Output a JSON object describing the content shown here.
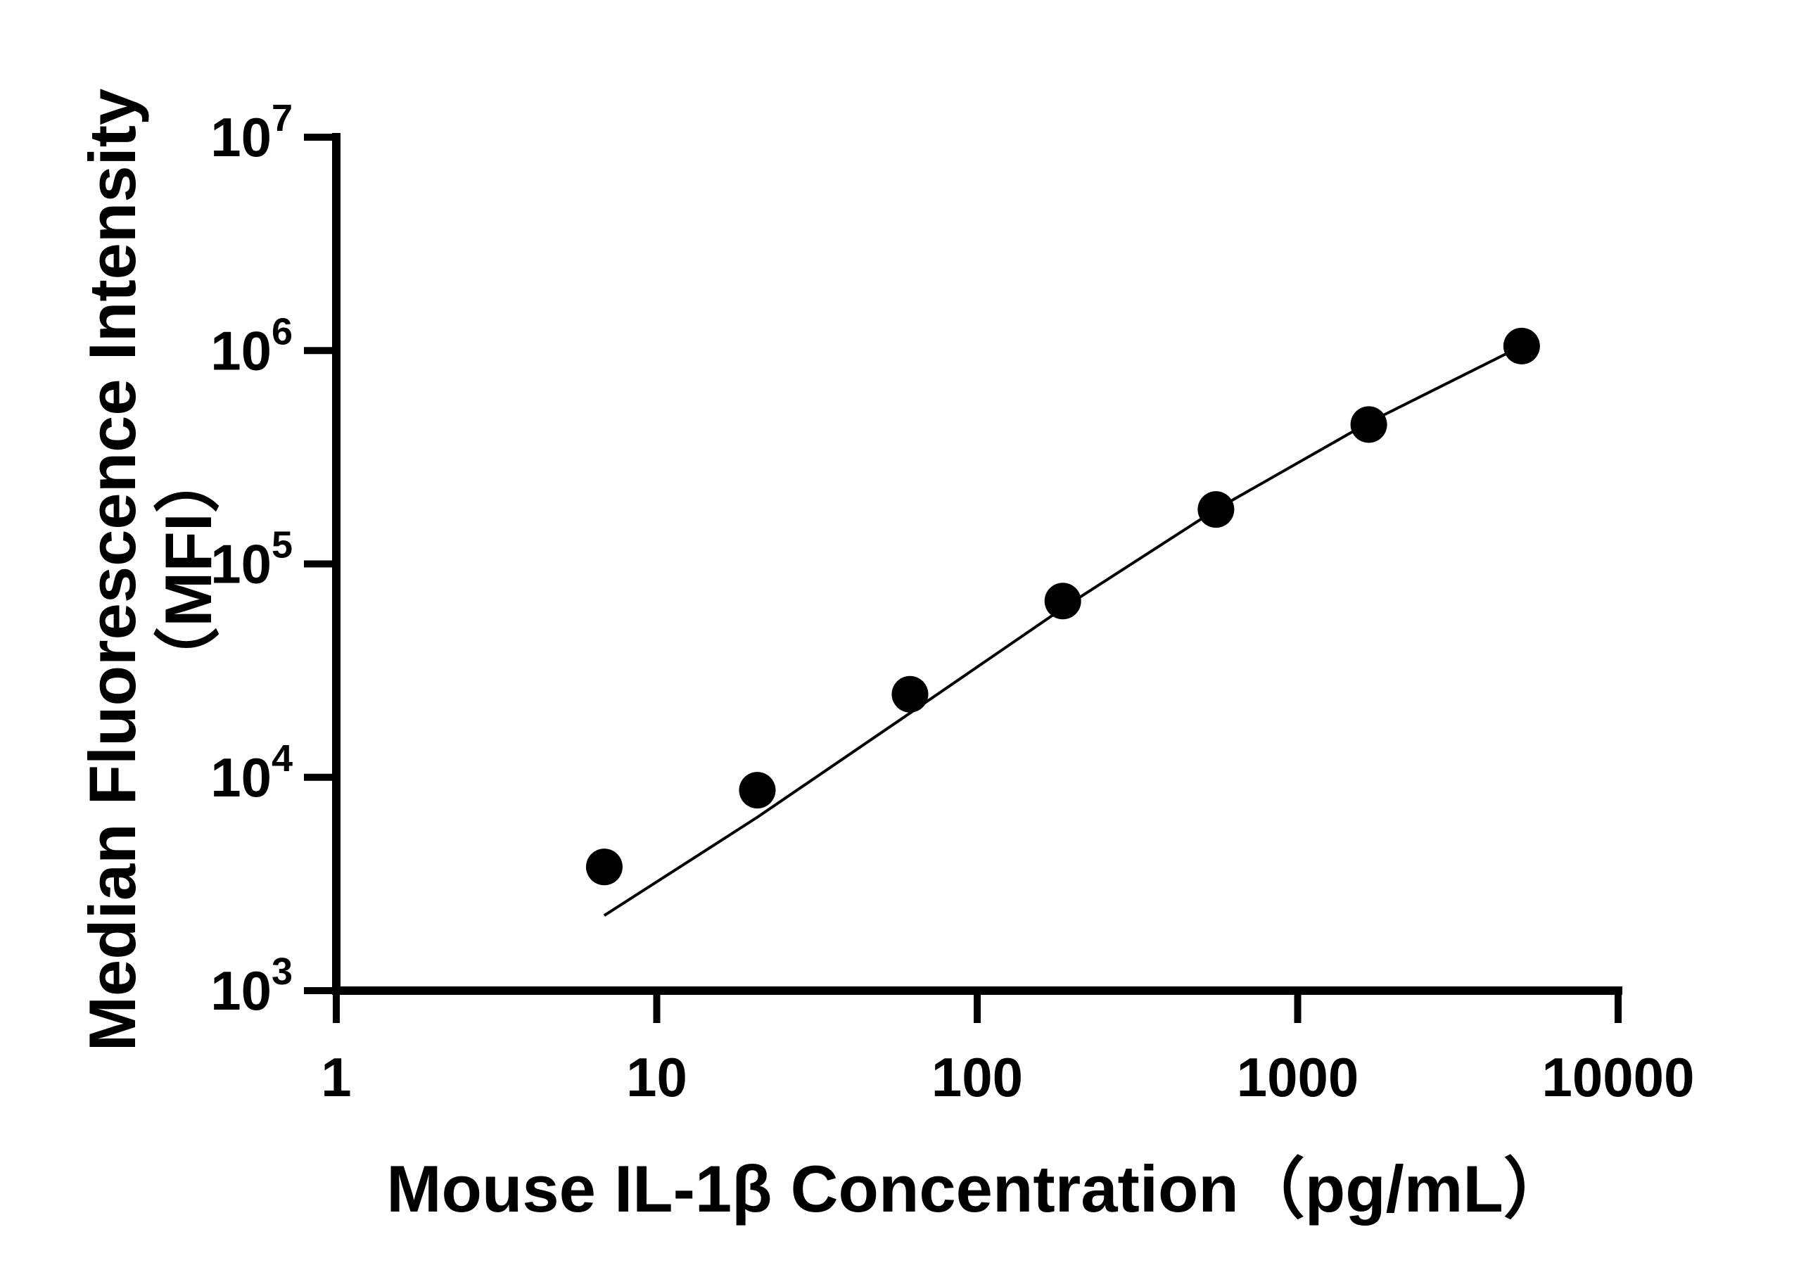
{
  "chart_data": {
    "type": "scatter",
    "title": "",
    "xlabel": "Mouse IL-1β Concentration（pg/mL）",
    "ylabel_line1": "Median Fluorescence Intensity",
    "ylabel_line2": "（MFI）",
    "x_scale": "log",
    "y_scale": "log",
    "xlim": [
      1,
      10000
    ],
    "ylim": [
      1000,
      10000000
    ],
    "x_ticks": [
      {
        "value": 1,
        "label": "1"
      },
      {
        "value": 10,
        "label": "10"
      },
      {
        "value": 100,
        "label": "100"
      },
      {
        "value": 1000,
        "label": "1000"
      },
      {
        "value": 10000,
        "label": "10000"
      }
    ],
    "y_ticks": [
      {
        "value": 1000,
        "base": "10",
        "exp": "3"
      },
      {
        "value": 10000,
        "base": "10",
        "exp": "4"
      },
      {
        "value": 100000,
        "base": "10",
        "exp": "5"
      },
      {
        "value": 1000000,
        "base": "10",
        "exp": "6"
      },
      {
        "value": 10000000,
        "base": "10",
        "exp": "7"
      }
    ],
    "series": [
      {
        "points": [
          {
            "x": 6.86,
            "y": 3800
          },
          {
            "x": 20.6,
            "y": 8700
          },
          {
            "x": 61.7,
            "y": 24500
          },
          {
            "x": 185,
            "y": 67000
          },
          {
            "x": 556,
            "y": 180000
          },
          {
            "x": 1667,
            "y": 450000
          },
          {
            "x": 5000,
            "y": 1050000
          }
        ],
        "fit_curve": [
          {
            "x": 6.86,
            "y": 2250
          },
          {
            "x": 20.6,
            "y": 6500
          },
          {
            "x": 61.7,
            "y": 20000
          },
          {
            "x": 185,
            "y": 62000
          },
          {
            "x": 556,
            "y": 180000
          },
          {
            "x": 1667,
            "y": 460000
          },
          {
            "x": 5000,
            "y": 1050000
          }
        ]
      }
    ],
    "grid": false,
    "legend": "none",
    "colors": {
      "marker": "#000000",
      "line": "#000000",
      "axis": "#000000"
    }
  }
}
